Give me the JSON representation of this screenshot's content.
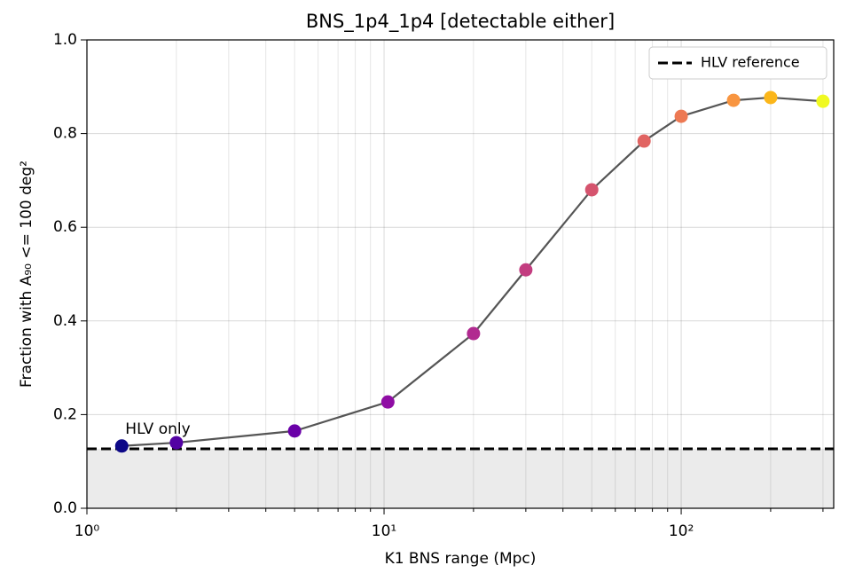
{
  "chart_data": {
    "type": "line",
    "title": "BNS_1p4_1p4 [detectable either]",
    "xlabel": "K1 BNS range (Mpc)",
    "ylabel": "Fraction with A₉₀ <= 100 deg²",
    "x": [
      1.31,
      2,
      5,
      10.3,
      20,
      30,
      50,
      75,
      100,
      150,
      200,
      300
    ],
    "values": [
      0.133,
      0.14,
      0.165,
      0.227,
      0.373,
      0.509,
      0.68,
      0.784,
      0.837,
      0.871,
      0.877,
      0.869
    ],
    "line_color": "#555555",
    "colors": [
      "#0d0887",
      "#5302a3",
      "#6a00a8",
      "#8f0da4",
      "#b12a90",
      "#c33d80",
      "#d5546e",
      "#e16462",
      "#ed7953",
      "#f89540",
      "#fbb61a",
      "#f0f921"
    ],
    "reference": {
      "name": "HLV reference",
      "value": 0.127,
      "color": "#000000"
    },
    "annotation": "HLV only",
    "xscale": "log",
    "xlim": [
      1,
      326
    ],
    "xticks": [
      {
        "value": 1,
        "label": "10⁰"
      },
      {
        "value": 10,
        "label": "10¹"
      },
      {
        "value": 100,
        "label": "10²"
      }
    ],
    "xminorticks": [
      2,
      3,
      4,
      5,
      6,
      7,
      8,
      9,
      20,
      30,
      40,
      50,
      60,
      70,
      80,
      90,
      200,
      300
    ],
    "ylim": [
      0,
      1
    ],
    "yticks": [
      {
        "value": 0,
        "label": "0.0"
      },
      0.2,
      0.4,
      0.6,
      0.8,
      {
        "value": 1,
        "label": "1.0"
      }
    ],
    "grid": true,
    "legend": "upper right"
  }
}
